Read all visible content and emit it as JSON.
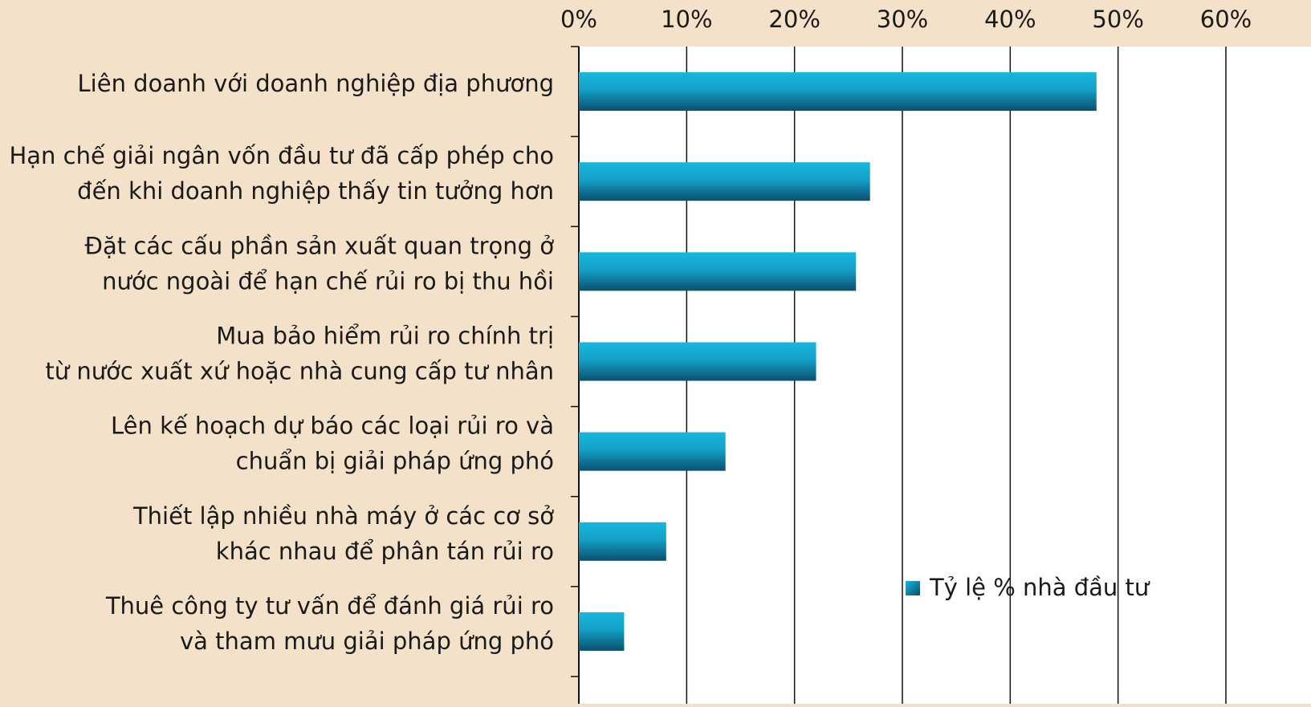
{
  "chart_data": {
    "type": "barh",
    "categories": [
      [
        "Liên doanh với doanh nghiệp địa phương"
      ],
      [
        "Hạn chế giải ngân vốn đầu tư đã cấp phép cho",
        "đến khi doanh nghiệp thấy tin tưởng hơn"
      ],
      [
        "Đặt các cấu phần sản xuất quan trọng ở",
        "nước ngoài để hạn chế rủi ro bị thu hồi"
      ],
      [
        "Mua bảo hiểm rủi ro chính trị",
        "từ nước xuất xứ hoặc nhà cung cấp tư nhân"
      ],
      [
        "Lên kế hoạch dự báo các loại rủi ro và",
        "chuẩn bị giải pháp ứng phó"
      ],
      [
        "Thiết lập nhiều nhà máy ở các cơ sở",
        "khác nhau để phân tán rủi ro"
      ],
      [
        "Thuê công ty tư vấn để đánh giá rủi ro",
        "và tham mưu giải pháp ứng phó"
      ]
    ],
    "series": [
      {
        "name": "Tỷ lệ % nhà đầu tư",
        "color": "#19b6de",
        "values": [
          48,
          27,
          25.7,
          22,
          13.6,
          8.1,
          4.2
        ]
      }
    ],
    "xlim": [
      0,
      60
    ],
    "xticks": [
      {
        "value": 0,
        "label": "0%"
      },
      {
        "value": 10,
        "label": "10%"
      },
      {
        "value": 20,
        "label": "20%"
      },
      {
        "value": 30,
        "label": "30%"
      },
      {
        "value": 40,
        "label": "40%"
      },
      {
        "value": 50,
        "label": "50%"
      },
      {
        "value": 60,
        "label": "60%"
      }
    ],
    "grid": true,
    "legend": "lower right"
  }
}
